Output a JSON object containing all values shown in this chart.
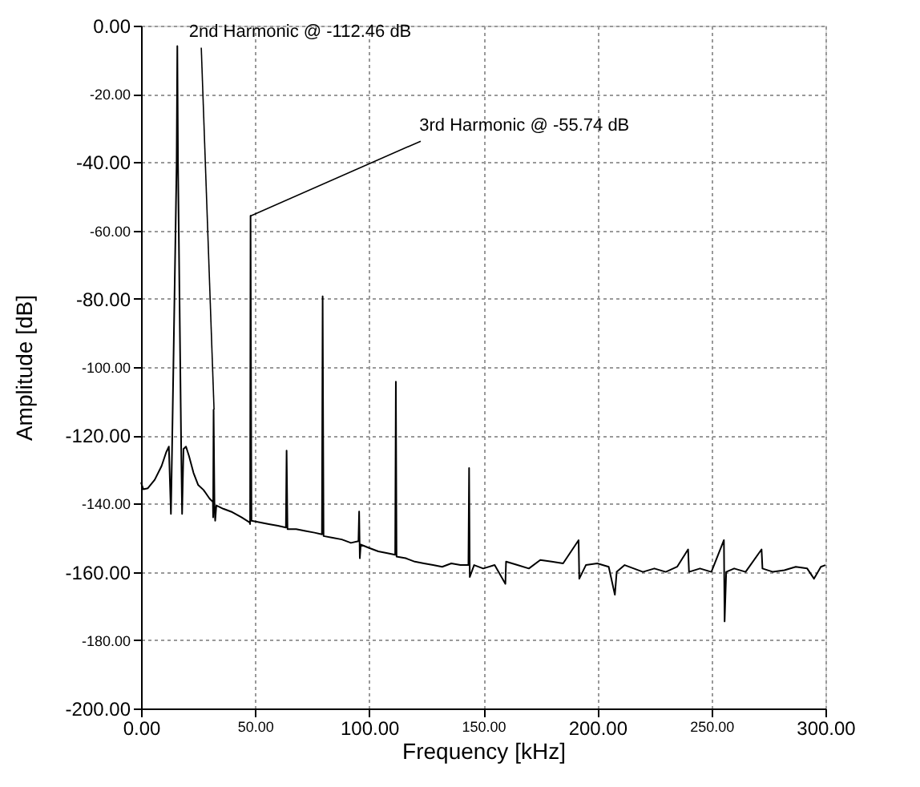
{
  "chart_data": {
    "type": "line",
    "xlabel": "Frequency [kHz]",
    "ylabel": "Amplitude [dB]",
    "x": [
      0,
      1,
      3,
      6,
      9,
      11,
      12.2,
      13.1,
      13.6,
      15.6,
      15.9,
      16.2,
      17.6,
      18,
      18.6,
      19.7,
      21,
      23,
      25,
      27.4,
      30,
      31.5,
      31.6,
      31.8,
      32.2,
      32.5,
      33,
      36,
      40,
      44,
      47.6,
      47.8,
      48,
      48.4,
      52,
      56,
      60,
      63.5,
      63.8,
      64.2,
      68,
      72,
      76,
      79.3,
      79.6,
      80,
      84,
      88,
      92,
      95.3,
      95.6,
      95.9,
      96.3,
      100,
      104,
      108,
      111.4,
      111.7,
      112,
      116,
      120,
      124,
      128,
      132,
      136,
      140,
      143.5,
      143.8,
      144.1,
      146,
      150,
      155,
      159.7,
      160,
      165,
      170,
      175,
      180,
      185,
      191.8,
      192.1,
      195,
      200,
      205,
      207.7,
      208.5,
      212,
      216,
      220,
      225,
      230,
      235,
      239.8,
      240.2,
      245,
      250,
      255.5,
      255.8,
      256.5,
      260,
      265,
      272,
      272.4,
      277,
      282,
      287,
      292,
      295,
      298,
      300
    ],
    "series": [
      {
        "color": "#000000",
        "values": [
          -133.8,
          -135.8,
          -135.5,
          -133,
          -129,
          -125,
          -123.3,
          -143,
          -124,
          -40,
          -6,
          -40,
          -124,
          -143,
          -124,
          -123.3,
          -126,
          -131,
          -134.5,
          -136,
          -138.5,
          -139.5,
          -144,
          -112.5,
          -141,
          -145,
          -140.5,
          -141.5,
          -142.5,
          -144,
          -145.5,
          -146,
          -55.7,
          -145,
          -145.5,
          -146,
          -146.5,
          -147,
          -124.5,
          -147.5,
          -147.5,
          -148,
          -148.5,
          -149,
          -79.3,
          -149.5,
          -150,
          -150.5,
          -151.5,
          -151,
          -142.3,
          -156,
          -152,
          -153,
          -154,
          -154.5,
          -155,
          -104.3,
          -155.5,
          -156,
          -157,
          -157.5,
          -158,
          -158.5,
          -157.5,
          -158,
          -158,
          -129.6,
          -161.5,
          -158,
          -159,
          -158,
          -163.5,
          -157,
          -158,
          -159,
          -156.5,
          -157,
          -157.5,
          -150.7,
          -162,
          -158,
          -157.5,
          -158.5,
          -166.7,
          -160,
          -158,
          -159,
          -160,
          -159,
          -160,
          -158.5,
          -153.4,
          -160,
          -159,
          -160,
          -150.7,
          -174.5,
          -160,
          -159,
          -160,
          -153.4,
          -159,
          -160,
          -159.5,
          -158.5,
          -159,
          -162,
          -158.5,
          -158
        ]
      }
    ],
    "xlim": [
      0,
      300
    ],
    "ylim": [
      -200,
      0
    ],
    "xticks": [
      {
        "value": 0,
        "label": "0.00"
      },
      {
        "value": 50,
        "label": "50.00"
      },
      {
        "value": 100,
        "label": "100.00"
      },
      {
        "value": 150,
        "label": "150.00"
      },
      {
        "value": 200,
        "label": "200.00"
      },
      {
        "value": 250,
        "label": "250.00"
      },
      {
        "value": 300,
        "label": "300.00"
      }
    ],
    "yticks": [
      {
        "value": -200,
        "label": "-200.00"
      },
      {
        "value": -180,
        "label": "-180.00"
      },
      {
        "value": -160,
        "label": "-160.00"
      },
      {
        "value": -140,
        "label": "-140.00"
      },
      {
        "value": -120,
        "label": "-120.00"
      },
      {
        "value": -100,
        "label": "-100.00"
      },
      {
        "value": -80,
        "label": "-80.00"
      },
      {
        "value": -60,
        "label": "-60.00"
      },
      {
        "value": -40,
        "label": "-40.00"
      },
      {
        "value": -20,
        "label": "-20.00"
      },
      {
        "value": 0,
        "label": "0.00"
      }
    ],
    "grid": true,
    "marker": "none",
    "line_style": "solid",
    "legend": false,
    "annotations": [
      {
        "text": "2nd Harmonic @ -112.46 dB",
        "x": 32,
        "y": -112.46
      },
      {
        "text": "3rd Harmonic @ -55.74 dB",
        "x": 48,
        "y": -55.74
      }
    ]
  }
}
